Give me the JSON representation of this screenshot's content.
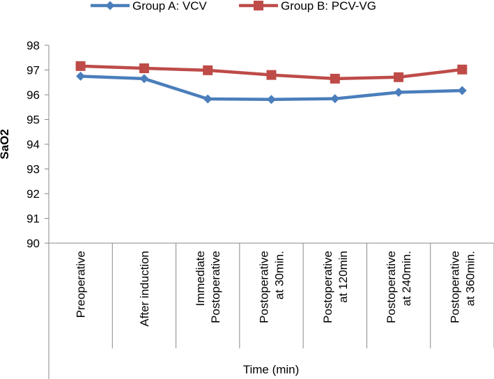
{
  "chart_data": {
    "type": "line",
    "categories": [
      [
        "Preoperative"
      ],
      [
        "After induction"
      ],
      [
        "Immediate",
        "Postoperative"
      ],
      [
        "Postoperative",
        "at 30min."
      ],
      [
        "Postoperative",
        "at 120min"
      ],
      [
        "Postoperative",
        "at 240min."
      ],
      [
        "Postoperative",
        "at 360min."
      ]
    ],
    "series": [
      {
        "name": "Group A: VCV",
        "color": "#4A7EBB",
        "marker": "diamond",
        "values": [
          96.75,
          96.65,
          95.83,
          95.81,
          95.84,
          96.1,
          96.17
        ]
      },
      {
        "name": "Group B: PCV-VG",
        "color": "#BE4B48",
        "marker": "square",
        "values": [
          97.16,
          97.07,
          96.99,
          96.8,
          96.65,
          96.71,
          97.02
        ]
      }
    ],
    "xlabel": "Time (min)",
    "ylabel": "SaO2",
    "ylim": [
      90,
      98
    ],
    "yticks": [
      90,
      91,
      92,
      93,
      94,
      95,
      96,
      97,
      98
    ],
    "grid": false,
    "legend": "top"
  }
}
